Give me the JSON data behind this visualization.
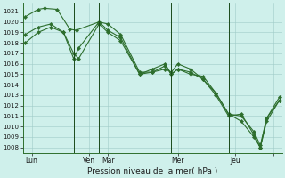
{
  "xlabel": "Pression niveau de la mer( hPa )",
  "background_color": "#cff0eb",
  "grid_color": "#a0ccc8",
  "line_color": "#2d6e2d",
  "vline_color": "#1a4a1a",
  "ylim": [
    1007.5,
    1021.8
  ],
  "yticks": [
    1008,
    1009,
    1010,
    1011,
    1012,
    1013,
    1014,
    1015,
    1016,
    1017,
    1018,
    1019,
    1020,
    1021
  ],
  "xlim": [
    -0.2,
    20.2
  ],
  "xtick_positions": [
    0.5,
    5.0,
    6.5,
    12.0,
    16.5,
    19.5
  ],
  "xtick_labels": [
    "Lun",
    "Ven",
    "Mar",
    "Mer",
    "Jeu",
    ""
  ],
  "vline_positions": [
    3.8,
    5.8,
    11.5,
    16.0
  ],
  "series1": [
    [
      0,
      1020.5
    ],
    [
      1,
      1021.2
    ],
    [
      1.5,
      1021.3
    ],
    [
      2.5,
      1021.2
    ],
    [
      3.5,
      1019.3
    ],
    [
      4,
      1019.2
    ],
    [
      5.8,
      1020.0
    ],
    [
      6.5,
      1019.8
    ],
    [
      7.5,
      1018.8
    ],
    [
      9,
      1015.2
    ],
    [
      10,
      1015.2
    ],
    [
      11,
      1015.5
    ],
    [
      11.5,
      1015.2
    ],
    [
      12,
      1016.0
    ],
    [
      13,
      1015.5
    ],
    [
      14,
      1014.5
    ],
    [
      15,
      1013.2
    ],
    [
      16,
      1011.2
    ],
    [
      17,
      1010.5
    ],
    [
      18,
      1009.0
    ],
    [
      18.5,
      1008.0
    ],
    [
      19,
      1010.5
    ],
    [
      20,
      1012.5
    ]
  ],
  "series2": [
    [
      0,
      1018.8
    ],
    [
      1,
      1019.5
    ],
    [
      2,
      1019.8
    ],
    [
      3,
      1019.0
    ],
    [
      3.8,
      1017.0
    ],
    [
      4.2,
      1016.5
    ],
    [
      5.8,
      1019.8
    ],
    [
      6.5,
      1019.0
    ],
    [
      7.5,
      1018.2
    ],
    [
      9,
      1015.0
    ],
    [
      10,
      1015.2
    ],
    [
      11,
      1015.8
    ],
    [
      11.5,
      1015.0
    ],
    [
      12,
      1015.5
    ],
    [
      13,
      1015.0
    ],
    [
      14,
      1014.8
    ],
    [
      15,
      1013.2
    ],
    [
      16,
      1011.2
    ],
    [
      17,
      1011.0
    ],
    [
      18,
      1009.5
    ],
    [
      18.5,
      1008.2
    ],
    [
      19,
      1010.8
    ],
    [
      20,
      1012.8
    ]
  ],
  "series3": [
    [
      0,
      1018.0
    ],
    [
      1,
      1019.0
    ],
    [
      2,
      1019.5
    ],
    [
      3,
      1019.0
    ],
    [
      3.8,
      1016.5
    ],
    [
      4.2,
      1017.5
    ],
    [
      5.8,
      1020.0
    ],
    [
      6.5,
      1019.2
    ],
    [
      7.5,
      1018.5
    ],
    [
      9,
      1015.0
    ],
    [
      10,
      1015.5
    ],
    [
      11,
      1016.0
    ],
    [
      11.5,
      1015.0
    ],
    [
      12,
      1015.5
    ],
    [
      13,
      1015.2
    ],
    [
      14,
      1014.5
    ],
    [
      15,
      1013.0
    ],
    [
      16,
      1011.0
    ],
    [
      17,
      1011.2
    ],
    [
      18,
      1009.2
    ],
    [
      18.5,
      1008.0
    ],
    [
      19,
      1010.8
    ],
    [
      20,
      1012.5
    ]
  ],
  "figsize": [
    3.2,
    2.0
  ],
  "dpi": 100
}
